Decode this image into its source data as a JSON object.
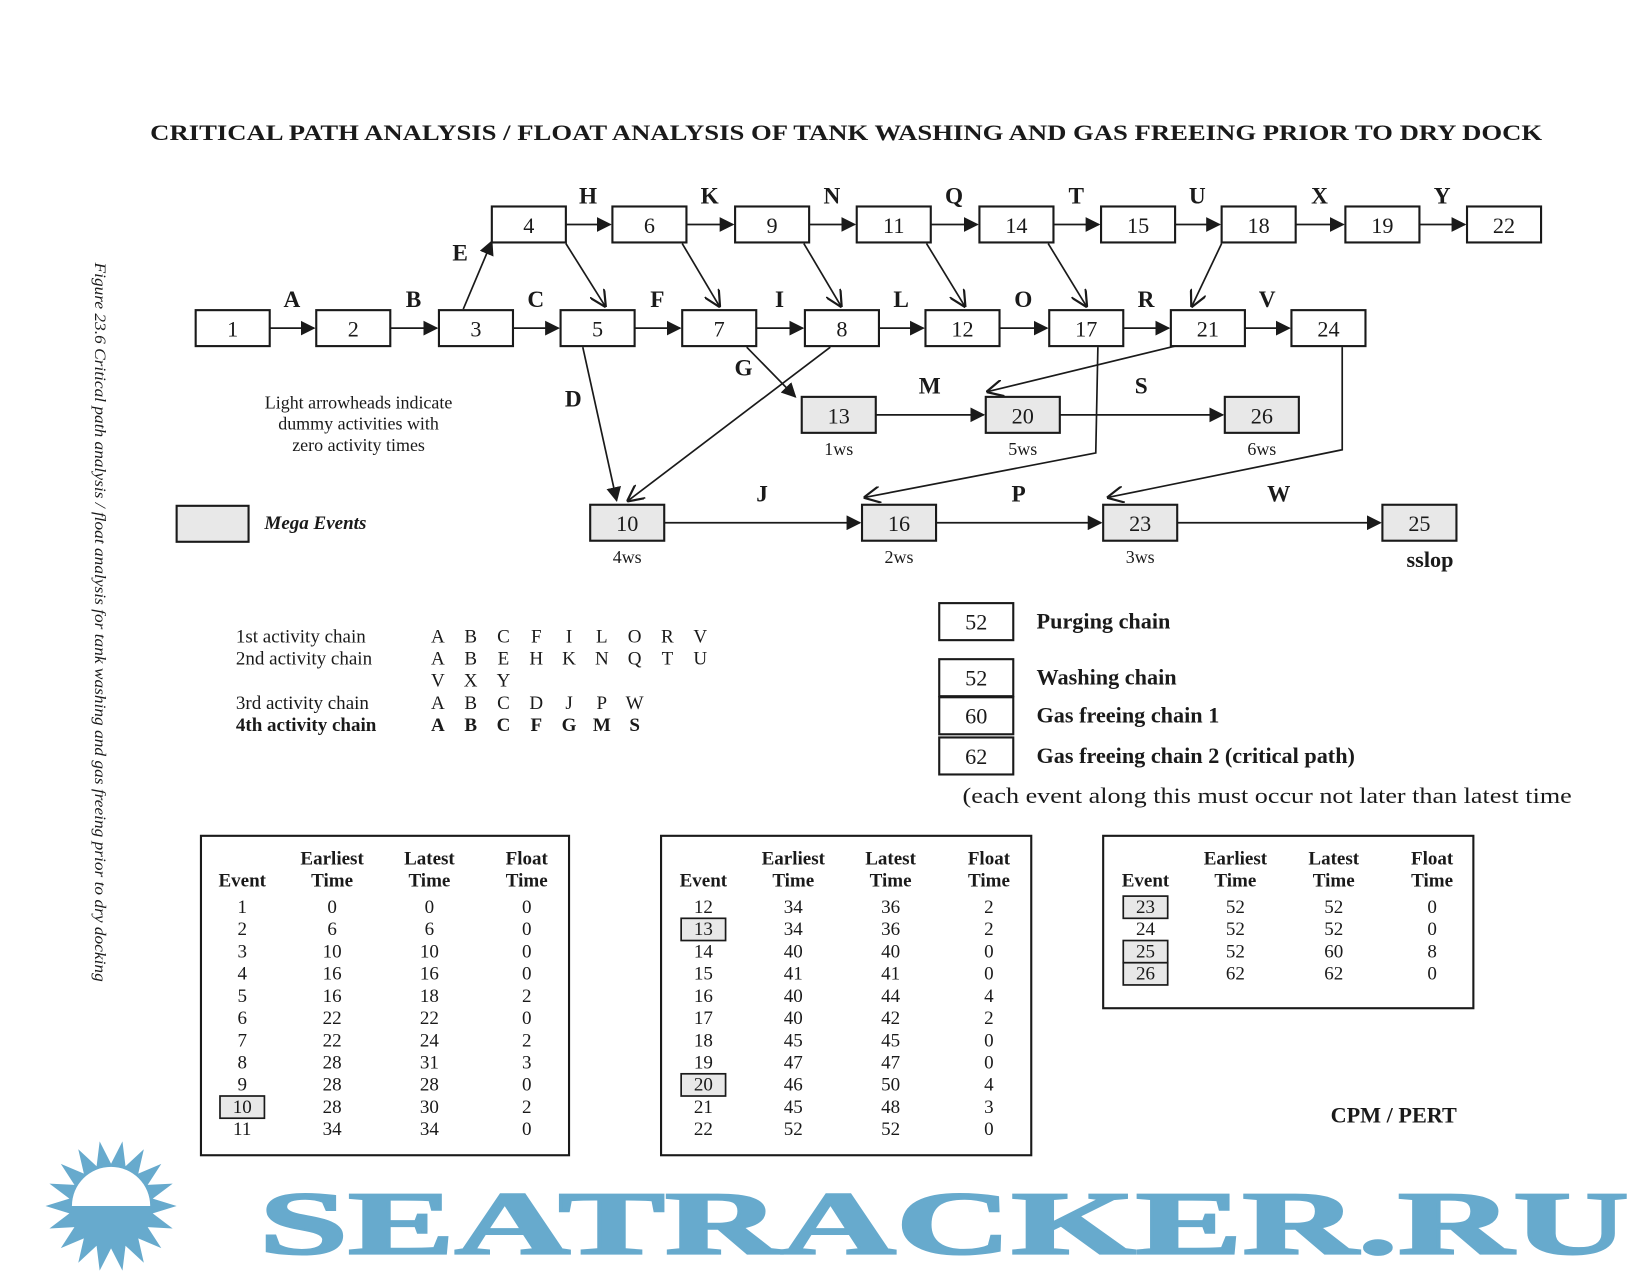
{
  "title": "CRITICAL PATH ANALYSIS / FLOAT ANALYSIS OF TANK WASHING AND GAS FREEING PRIOR TO DRY DOCK",
  "figure_caption": "Figure 23.6  Critical path analysis / float analysis for tank washing and gas freeing prior to dry docking",
  "network": {
    "nodes": [
      {
        "id": "1",
        "mega": false
      },
      {
        "id": "2",
        "mega": false
      },
      {
        "id": "3",
        "mega": false
      },
      {
        "id": "4",
        "mega": false
      },
      {
        "id": "5",
        "mega": false
      },
      {
        "id": "6",
        "mega": false
      },
      {
        "id": "7",
        "mega": false
      },
      {
        "id": "8",
        "mega": false
      },
      {
        "id": "9",
        "mega": false
      },
      {
        "id": "10",
        "mega": true,
        "sub": "4ws"
      },
      {
        "id": "11",
        "mega": false
      },
      {
        "id": "12",
        "mega": false
      },
      {
        "id": "13",
        "mega": true,
        "sub": "1ws"
      },
      {
        "id": "14",
        "mega": false
      },
      {
        "id": "15",
        "mega": false
      },
      {
        "id": "16",
        "mega": true,
        "sub": "2ws"
      },
      {
        "id": "17",
        "mega": false
      },
      {
        "id": "18",
        "mega": false
      },
      {
        "id": "19",
        "mega": false
      },
      {
        "id": "20",
        "mega": true,
        "sub": "5ws"
      },
      {
        "id": "21",
        "mega": false
      },
      {
        "id": "22",
        "mega": false
      },
      {
        "id": "23",
        "mega": true,
        "sub": "3ws"
      },
      {
        "id": "24",
        "mega": false
      },
      {
        "id": "25",
        "mega": true,
        "sub": "sslop"
      },
      {
        "id": "26",
        "mega": true,
        "sub": "6ws"
      }
    ],
    "edges": [
      {
        "from": "1",
        "to": "2",
        "label": "A",
        "dummy": false
      },
      {
        "from": "2",
        "to": "3",
        "label": "B",
        "dummy": false
      },
      {
        "from": "3",
        "to": "4",
        "label": "E",
        "dummy": false
      },
      {
        "from": "3",
        "to": "5",
        "label": "C",
        "dummy": false
      },
      {
        "from": "5",
        "to": "7",
        "label": "F",
        "dummy": false
      },
      {
        "from": "7",
        "to": "8",
        "label": "I",
        "dummy": false
      },
      {
        "from": "8",
        "to": "12",
        "label": "L",
        "dummy": false
      },
      {
        "from": "12",
        "to": "17",
        "label": "O",
        "dummy": false
      },
      {
        "from": "17",
        "to": "21",
        "label": "R",
        "dummy": false
      },
      {
        "from": "21",
        "to": "24",
        "label": "V",
        "dummy": false
      },
      {
        "from": "4",
        "to": "6",
        "label": "H",
        "dummy": false
      },
      {
        "from": "6",
        "to": "9",
        "label": "K",
        "dummy": false
      },
      {
        "from": "9",
        "to": "11",
        "label": "N",
        "dummy": false
      },
      {
        "from": "11",
        "to": "14",
        "label": "Q",
        "dummy": false
      },
      {
        "from": "14",
        "to": "15",
        "label": "T",
        "dummy": false
      },
      {
        "from": "15",
        "to": "18",
        "label": "U",
        "dummy": false
      },
      {
        "from": "18",
        "to": "19",
        "label": "X",
        "dummy": false
      },
      {
        "from": "19",
        "to": "22",
        "label": "Y",
        "dummy": false
      },
      {
        "from": "5",
        "to": "10",
        "label": "D",
        "dummy": false
      },
      {
        "from": "7",
        "to": "13",
        "label": "G",
        "dummy": false
      },
      {
        "from": "13",
        "to": "20",
        "label": "M",
        "dummy": false
      },
      {
        "from": "20",
        "to": "26",
        "label": "S",
        "dummy": false
      },
      {
        "from": "10",
        "to": "16",
        "label": "J",
        "dummy": false
      },
      {
        "from": "16",
        "to": "23",
        "label": "P",
        "dummy": false
      },
      {
        "from": "23",
        "to": "25",
        "label": "W",
        "dummy": false
      },
      {
        "from": "4",
        "to": "5",
        "label": "",
        "dummy": true
      },
      {
        "from": "6",
        "to": "7",
        "label": "",
        "dummy": true
      },
      {
        "from": "9",
        "to": "8",
        "label": "",
        "dummy": true
      },
      {
        "from": "11",
        "to": "12",
        "label": "",
        "dummy": true
      },
      {
        "from": "14",
        "to": "17",
        "label": "",
        "dummy": true
      },
      {
        "from": "18",
        "to": "21",
        "label": "",
        "dummy": true
      },
      {
        "from": "8",
        "to": "10",
        "label": "",
        "dummy": true
      },
      {
        "from": "21",
        "to": "20",
        "label": "",
        "dummy": true
      },
      {
        "from": "17",
        "to": "16",
        "label": "",
        "dummy": true
      },
      {
        "from": "24",
        "to": "23",
        "label": "",
        "dummy": true
      }
    ]
  },
  "notes": {
    "dummy_line1": "Light arrowheads indicate",
    "dummy_line2": "dummy activities with",
    "dummy_line3": "zero activity times",
    "mega_events": "Mega Events"
  },
  "chains": [
    {
      "label": "1st activity chain",
      "activities": [
        "A",
        "B",
        "C",
        "F",
        "I",
        "L",
        "O",
        "R",
        "V"
      ],
      "bold": false
    },
    {
      "label": "2nd activity chain",
      "activities": [
        "A",
        "B",
        "E",
        "H",
        "K",
        "N",
        "Q",
        "T",
        "U"
      ],
      "cont": [
        "V",
        "X",
        "Y"
      ],
      "bold": false
    },
    {
      "label": "3rd activity chain",
      "activities": [
        "A",
        "B",
        "C",
        "D",
        "J",
        "P",
        "W"
      ],
      "bold": false
    },
    {
      "label": "4th activity chain",
      "activities": [
        "A",
        "B",
        "C",
        "F",
        "G",
        "M",
        "S"
      ],
      "bold": true
    }
  ],
  "chain_totals": [
    {
      "value": "52",
      "label": "Purging chain"
    },
    {
      "value": "52",
      "label": "Washing chain"
    },
    {
      "value": "60",
      "label": "Gas freeing chain 1"
    },
    {
      "value": "62",
      "label": "Gas freeing chain 2 (critical path)"
    }
  ],
  "critical_note": "(each event along this must occur not later than latest time",
  "table_headers": {
    "event": "Event",
    "earliest1": "Earliest",
    "latest1": "Latest",
    "float1": "Float",
    "time": "Time"
  },
  "tables": [
    {
      "rows": [
        [
          "1",
          "0",
          "0",
          "0"
        ],
        [
          "2",
          "6",
          "6",
          "0"
        ],
        [
          "3",
          "10",
          "10",
          "0"
        ],
        [
          "4",
          "16",
          "16",
          "0"
        ],
        [
          "5",
          "16",
          "18",
          "2"
        ],
        [
          "6",
          "22",
          "22",
          "0"
        ],
        [
          "7",
          "22",
          "24",
          "2"
        ],
        [
          "8",
          "28",
          "31",
          "3"
        ],
        [
          "9",
          "28",
          "28",
          "0"
        ],
        [
          "10",
          "28",
          "30",
          "2"
        ],
        [
          "11",
          "34",
          "34",
          "0"
        ]
      ],
      "highlight": [
        "10"
      ]
    },
    {
      "rows": [
        [
          "12",
          "34",
          "36",
          "2"
        ],
        [
          "13",
          "34",
          "36",
          "2"
        ],
        [
          "14",
          "40",
          "40",
          "0"
        ],
        [
          "15",
          "41",
          "41",
          "0"
        ],
        [
          "16",
          "40",
          "44",
          "4"
        ],
        [
          "17",
          "40",
          "42",
          "2"
        ],
        [
          "18",
          "45",
          "45",
          "0"
        ],
        [
          "19",
          "47",
          "47",
          "0"
        ],
        [
          "20",
          "46",
          "50",
          "4"
        ],
        [
          "21",
          "45",
          "48",
          "3"
        ],
        [
          "22",
          "52",
          "52",
          "0"
        ]
      ],
      "highlight": [
        "13",
        "20"
      ]
    },
    {
      "rows": [
        [
          "23",
          "52",
          "52",
          "0"
        ],
        [
          "24",
          "52",
          "52",
          "0"
        ],
        [
          "25",
          "52",
          "60",
          "8"
        ],
        [
          "26",
          "62",
          "62",
          "0"
        ]
      ],
      "highlight": [
        "23",
        "25",
        "26"
      ]
    }
  ],
  "footer": "CPM / PERT",
  "watermark": "SEATRACKER.RU",
  "colors": {
    "ink": "#1a1a1a",
    "mega_fill": "#e8e8e8",
    "watermark": "#67aacd"
  }
}
